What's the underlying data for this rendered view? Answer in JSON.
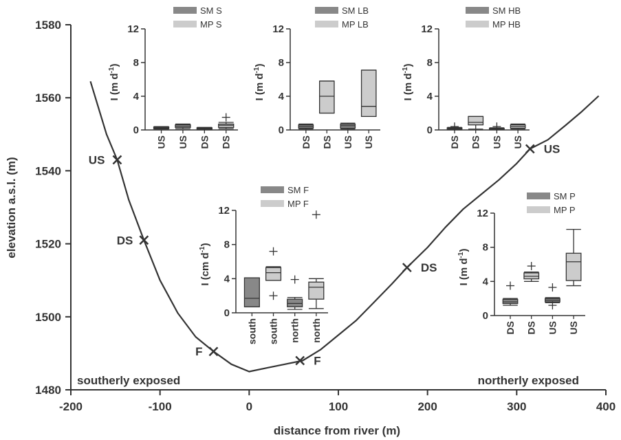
{
  "chart_data": {
    "type": "line",
    "main": {
      "xlabel": "distance from river (m)",
      "ylabel": "elevation a.s.l. (m)",
      "xlim": [
        -200,
        400
      ],
      "ylim": [
        1480,
        1580
      ],
      "xticks": [
        -200,
        -100,
        0,
        100,
        200,
        300,
        400
      ],
      "yticks": [
        1480,
        1500,
        1520,
        1540,
        1560,
        1580
      ],
      "x_tick_labels": [
        "-200",
        "-100",
        "0",
        "100",
        "200",
        "300",
        "400"
      ],
      "y_tick_labels": [
        "1480",
        "1500",
        "1520",
        "1540",
        "1560",
        "1580"
      ],
      "profile": {
        "x": [
          -178,
          -160,
          -148,
          -135,
          -118,
          -100,
          -80,
          -60,
          -40,
          -20,
          0,
          20,
          40,
          60,
          80,
          100,
          120,
          140,
          160,
          177,
          200,
          220,
          240,
          260,
          280,
          300,
          315,
          335,
          355,
          372,
          392
        ],
        "y": [
          1564.5,
          1550,
          1543,
          1532,
          1521,
          1510,
          1501,
          1494.5,
          1490.5,
          1487,
          1485,
          1486,
          1487,
          1488,
          1491,
          1495,
          1499,
          1504,
          1509,
          1513.5,
          1519,
          1524.5,
          1529.5,
          1533.5,
          1537.5,
          1542,
          1546,
          1548.5,
          1552.5,
          1556,
          1560.5
        ]
      },
      "markers": [
        {
          "label": "US",
          "x": -148,
          "y": 1543
        },
        {
          "label": "DS",
          "x": -118,
          "y": 1521
        },
        {
          "label": "F",
          "x": -40,
          "y": 1490.5
        },
        {
          "label": "F",
          "x": 57,
          "y": 1488
        },
        {
          "label": "DS",
          "x": 177,
          "y": 1513.5
        },
        {
          "label": "US",
          "x": 315,
          "y": 1546
        }
      ],
      "corner_labels": [
        "southerly exposed",
        "northerly exposed"
      ]
    },
    "insets": [
      {
        "id": "S",
        "ylabel": "I (m d",
        "ylabel_sup": "-1",
        "ylim": [
          0,
          12
        ],
        "yticks": [
          0,
          4,
          8,
          12
        ],
        "y_tick_labels": [
          "0",
          "4",
          "8",
          "12"
        ],
        "legend": [
          "SM S",
          "MP S"
        ],
        "categories": [
          "US",
          "US",
          "DS",
          "DS"
        ],
        "series_of_box": [
          "SM",
          "MP",
          "SM",
          "MP"
        ],
        "boxes": [
          {
            "min": 0.1,
            "q1": 0.15,
            "med": 0.25,
            "q3": 0.35,
            "max": 0.4,
            "outliers": []
          },
          {
            "min": 0.15,
            "q1": 0.3,
            "med": 0.45,
            "q3": 0.6,
            "max": 0.7,
            "outliers": []
          },
          {
            "min": 0.05,
            "q1": 0.1,
            "med": 0.18,
            "q3": 0.25,
            "max": 0.3,
            "outliers": []
          },
          {
            "min": 0.15,
            "q1": 0.3,
            "med": 0.55,
            "q3": 0.7,
            "max": 0.9,
            "outliers": [
              1.5
            ]
          }
        ]
      },
      {
        "id": "LB",
        "ylabel": "I (m d",
        "ylabel_sup": "-1",
        "ylim": [
          0,
          12
        ],
        "yticks": [
          0,
          4,
          8,
          12
        ],
        "y_tick_labels": [
          "0",
          "4",
          "8",
          "12"
        ],
        "legend": [
          "SM LB",
          "MP LB"
        ],
        "categories": [
          "DS",
          "DS",
          "US",
          "US"
        ],
        "series_of_box": [
          "SM",
          "MP",
          "SM",
          "MP"
        ],
        "boxes": [
          {
            "min": 0.1,
            "q1": 0.2,
            "med": 0.4,
            "q3": 0.6,
            "max": 0.7,
            "outliers": []
          },
          {
            "min": 2.0,
            "q1": 2.0,
            "med": 4.0,
            "q3": 5.8,
            "max": 5.8,
            "outliers": []
          },
          {
            "min": 0.1,
            "q1": 0.2,
            "med": 0.5,
            "q3": 0.7,
            "max": 0.8,
            "outliers": []
          },
          {
            "min": 1.6,
            "q1": 1.6,
            "med": 2.8,
            "q3": 7.1,
            "max": 7.1,
            "outliers": []
          }
        ]
      },
      {
        "id": "HB",
        "ylabel": "I (m d",
        "ylabel_sup": "-1",
        "ylim": [
          0,
          12
        ],
        "yticks": [
          0,
          4,
          8,
          12
        ],
        "y_tick_labels": [
          "0",
          "4",
          "8",
          "12"
        ],
        "legend": [
          "SM HB",
          "MP HB"
        ],
        "categories": [
          "DS",
          "DS",
          "US",
          "US"
        ],
        "series_of_box": [
          "SM",
          "MP",
          "SM",
          "MP"
        ],
        "boxes": [
          {
            "min": 0.05,
            "q1": 0.1,
            "med": 0.15,
            "q3": 0.25,
            "max": 0.3,
            "outliers": [
              0.4
            ]
          },
          {
            "min": 0.1,
            "q1": 0.6,
            "med": 0.9,
            "q3": 1.6,
            "max": 1.6,
            "outliers": []
          },
          {
            "min": 0.05,
            "q1": 0.1,
            "med": 0.12,
            "q3": 0.2,
            "max": 0.25,
            "outliers": [
              0.4
            ]
          },
          {
            "min": 0.1,
            "q1": 0.2,
            "med": 0.4,
            "q3": 0.6,
            "max": 0.7,
            "outliers": []
          }
        ]
      },
      {
        "id": "F",
        "ylabel": "I (cm d",
        "ylabel_sup": "-1",
        "ylim": [
          0,
          12
        ],
        "yticks": [
          0,
          4,
          8,
          12
        ],
        "y_tick_labels": [
          "0",
          "4",
          "8",
          "12"
        ],
        "legend": [
          "SM F",
          "MP F"
        ],
        "categories": [
          "south",
          "south",
          "north",
          "north"
        ],
        "series_of_box": [
          "SM",
          "MP",
          "SM",
          "MP"
        ],
        "boxes": [
          {
            "min": 0.7,
            "q1": 0.7,
            "med": 1.7,
            "q3": 4.1,
            "max": 4.1,
            "outliers": []
          },
          {
            "min": 3.8,
            "q1": 3.8,
            "med": 4.7,
            "q3": 5.3,
            "max": 5.4,
            "outliers": [
              7.2,
              2.0
            ]
          },
          {
            "min": 0.4,
            "q1": 0.7,
            "med": 1.1,
            "q3": 1.6,
            "max": 1.8,
            "outliers": [
              3.9
            ]
          },
          {
            "min": 0.5,
            "q1": 1.6,
            "med": 3.0,
            "q3": 3.6,
            "max": 4.0,
            "outliers": [
              11.5
            ]
          }
        ]
      },
      {
        "id": "P",
        "ylabel": "I (m d",
        "ylabel_sup": "-1",
        "ylim": [
          0,
          12
        ],
        "yticks": [
          0,
          4,
          8,
          12
        ],
        "y_tick_labels": [
          "0",
          "4",
          "8",
          "12"
        ],
        "legend": [
          "SM P",
          "MP P"
        ],
        "categories": [
          "DS",
          "DS",
          "US",
          "US"
        ],
        "series_of_box": [
          "SM",
          "MP",
          "SM",
          "MP"
        ],
        "boxes": [
          {
            "min": 1.2,
            "q1": 1.4,
            "med": 1.6,
            "q3": 1.9,
            "max": 2.0,
            "outliers": [
              3.5
            ]
          },
          {
            "min": 4.0,
            "q1": 4.3,
            "med": 4.6,
            "q3": 5.0,
            "max": 5.1,
            "outliers": [
              5.8
            ]
          },
          {
            "min": 1.5,
            "q1": 1.6,
            "med": 1.8,
            "q3": 2.0,
            "max": 2.1,
            "outliers": [
              3.3,
              1.2
            ]
          },
          {
            "min": 3.5,
            "q1": 4.1,
            "med": 6.3,
            "q3": 7.3,
            "max": 10.1,
            "outliers": []
          }
        ]
      }
    ]
  },
  "colors": {
    "sm_fill": "#888888",
    "mp_fill": "#cccccc",
    "line": "#333333",
    "text": "#333333"
  }
}
